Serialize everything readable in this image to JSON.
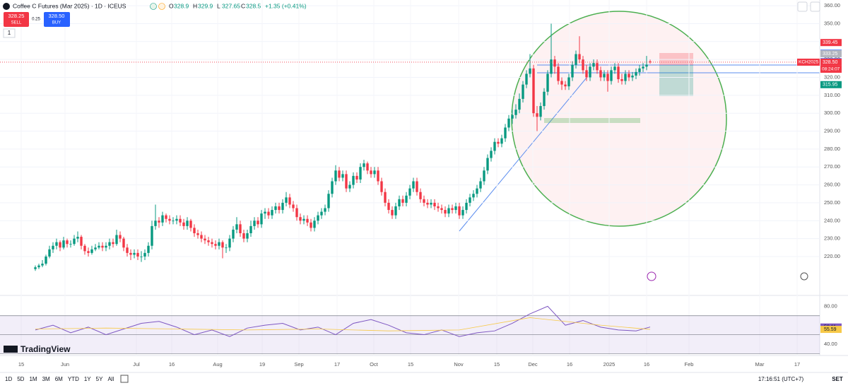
{
  "header": {
    "title": "Coffee C Futures (Mar 2025) · 1D · ICEUS",
    "o_label": "O",
    "h_label": "H",
    "l_label": "L",
    "c_label": "C",
    "change": "+1.35 (+0.41%)",
    "sell_price": "328.25",
    "sell_label": "SELL",
    "spread": "0.25",
    "buy_price": "328.50",
    "buy_label": "BUY",
    "quantity": "1",
    "logo": "TradingView"
  },
  "toolbar": {
    "ranges": [
      "1D",
      "5D",
      "1M",
      "3M",
      "6M",
      "YTD",
      "1Y",
      "5Y",
      "All"
    ],
    "clock": "17:16:51 (UTC+7)",
    "session": "SET"
  },
  "chart_data": [
    {
      "type": "candlestick",
      "symbol_tag": "KCH2025",
      "countdown": "08:24:07",
      "up_color": "#089981",
      "down_color": "#f23645",
      "xlim": [
        -10,
        222
      ],
      "ylim": [
        204.6,
        363.2
      ],
      "yticks": [
        {
          "value": 220,
          "label": "220.00"
        },
        {
          "value": 230,
          "label": "230.00"
        },
        {
          "value": 240,
          "label": "240.00"
        },
        {
          "value": 250,
          "label": "250.00"
        },
        {
          "value": 260,
          "label": "260.00"
        },
        {
          "value": 270,
          "label": "270.00"
        },
        {
          "value": 280,
          "label": "280.00"
        },
        {
          "value": 290,
          "label": "290.00"
        },
        {
          "value": 300,
          "label": "300.00"
        },
        {
          "value": 310,
          "label": "310.00"
        },
        {
          "value": 320,
          "label": "320.00"
        },
        {
          "value": 330,
          "label": "330.00"
        },
        {
          "value": 340,
          "label": "340.00"
        },
        {
          "value": 350,
          "label": "350.00"
        },
        {
          "value": 360,
          "label": "360.00"
        }
      ],
      "xticks": [
        {
          "value": -4,
          "label": "15"
        },
        {
          "value": 8.4,
          "label": "Jun"
        },
        {
          "value": 28.6,
          "label": "Jul"
        },
        {
          "value": 38.6,
          "label": "16"
        },
        {
          "value": 51.6,
          "label": "Aug"
        },
        {
          "value": 64.2,
          "label": "19"
        },
        {
          "value": 74.6,
          "label": "Sep"
        },
        {
          "value": 85.4,
          "label": "17"
        },
        {
          "value": 95.8,
          "label": "Oct"
        },
        {
          "value": 106.2,
          "label": "15"
        },
        {
          "value": 119.8,
          "label": "Nov"
        },
        {
          "value": 130.6,
          "label": "15"
        },
        {
          "value": 140.8,
          "label": "Dec"
        },
        {
          "value": 151.2,
          "label": "16"
        },
        {
          "value": 162.4,
          "label": "2025"
        },
        {
          "value": 173,
          "label": "16"
        },
        {
          "value": 185,
          "label": "Feb"
        },
        {
          "value": 205,
          "label": "Mar"
        },
        {
          "value": 215.6,
          "label": "17"
        }
      ],
      "price_tags": [
        {
          "value": 339.45,
          "label": "339.45",
          "color": "#f23645"
        },
        {
          "value": 333.5,
          "label": "333.50",
          "color": "#2962ff"
        },
        {
          "value": 333.25,
          "label": "333.25",
          "color": "#b2b5be"
        },
        {
          "value": 328.75,
          "label": "328.75",
          "color": "#2962ff"
        },
        {
          "value": 328.5,
          "label": "328.50",
          "color": "#f23645"
        },
        {
          "value": 315.95,
          "label": "315.95",
          "color": "#089981"
        }
      ],
      "series": {
        "open": [
          213,
          214,
          215,
          216,
          220,
          224,
          226,
          228,
          225,
          229,
          227,
          227,
          230,
          231,
          226,
          223,
          222,
          224,
          225,
          226,
          225,
          226,
          228,
          227,
          232,
          230,
          225,
          222,
          221,
          222,
          220,
          220,
          222,
          226,
          237,
          240,
          239,
          243,
          241,
          240,
          240,
          241,
          239,
          237,
          240,
          236,
          233,
          232,
          230,
          229,
          228,
          227,
          226,
          228,
          225,
          225,
          230,
          235,
          238,
          233,
          230,
          233,
          237,
          240,
          238,
          244,
          245,
          243,
          246,
          248,
          246,
          250,
          253,
          249,
          247,
          242,
          240,
          241,
          239,
          236,
          240,
          243,
          245,
          247,
          255,
          262,
          268,
          264,
          266,
          258,
          260,
          265,
          263,
          270,
          272,
          268,
          266,
          268,
          262,
          256,
          250,
          246,
          243,
          248,
          252,
          250,
          254,
          258,
          262,
          256,
          252,
          250,
          249,
          250,
          248,
          247,
          246,
          244,
          247,
          246,
          248,
          243,
          246,
          250,
          253,
          255,
          258,
          262,
          268,
          275,
          279,
          284,
          283,
          286,
          292,
          297,
          299,
          302,
          308,
          316,
          322,
          325,
          300,
          298,
          304,
          312,
          322,
          330,
          326,
          318,
          316,
          315,
          320,
          327,
          333,
          330,
          324,
          320,
          326,
          328,
          324,
          320,
          322,
          318,
          324,
          326,
          319,
          318,
          322,
          320,
          321,
          323,
          325,
          326,
          328.9
        ],
        "high": [
          215,
          216,
          218,
          221,
          226,
          228,
          230,
          229,
          231,
          230,
          229,
          232,
          234,
          232,
          227,
          225,
          226,
          227,
          228,
          228,
          228,
          230,
          230,
          235,
          234,
          231,
          227,
          224,
          224,
          224,
          223,
          224,
          228,
          240,
          249,
          242,
          245,
          244,
          243,
          242,
          243,
          243,
          241,
          242,
          241,
          238,
          235,
          234,
          232,
          231,
          230,
          229,
          230,
          229,
          227,
          232,
          237,
          242,
          240,
          235,
          235,
          240,
          242,
          242,
          246,
          247,
          247,
          248,
          250,
          250,
          252,
          256,
          255,
          251,
          249,
          244,
          243,
          243,
          241,
          242,
          245,
          247,
          249,
          257,
          264,
          271,
          270,
          268,
          268,
          262,
          267,
          267,
          272,
          274,
          273,
          270,
          270,
          270,
          264,
          258,
          252,
          248,
          250,
          254,
          254,
          256,
          260,
          264,
          264,
          258,
          254,
          252,
          252,
          252,
          250,
          249,
          248,
          249,
          249,
          250,
          250,
          248,
          252,
          255,
          257,
          260,
          264,
          270,
          277,
          281,
          286,
          286,
          288,
          294,
          299,
          302,
          305,
          311,
          318,
          324,
          333,
          327,
          304,
          306,
          314,
          324,
          350,
          332,
          328,
          320,
          318,
          322,
          329,
          335,
          343,
          332,
          327,
          328,
          330,
          330,
          326,
          324,
          324,
          326,
          328,
          328,
          322,
          324,
          324,
          323,
          325,
          327,
          328,
          332,
          329.9
        ],
        "low": [
          212,
          213,
          214,
          215,
          219,
          222,
          224,
          223,
          224,
          225,
          225,
          226,
          228,
          224,
          221,
          220,
          221,
          223,
          224,
          223,
          223,
          224,
          225,
          226,
          228,
          223,
          220,
          218,
          219,
          218,
          217,
          218,
          220,
          224,
          235,
          236,
          237,
          239,
          238,
          238,
          238,
          237,
          235,
          235,
          234,
          231,
          230,
          228,
          227,
          226,
          225,
          224,
          224,
          219,
          222,
          223,
          228,
          233,
          231,
          228,
          228,
          231,
          235,
          236,
          236,
          241,
          241,
          241,
          244,
          244,
          244,
          248,
          247,
          245,
          240,
          238,
          238,
          237,
          234,
          234,
          238,
          241,
          243,
          245,
          253,
          260,
          262,
          262,
          256,
          256,
          258,
          261,
          261,
          268,
          266,
          264,
          264,
          260,
          254,
          248,
          244,
          241,
          241,
          246,
          248,
          248,
          252,
          256,
          254,
          250,
          248,
          247,
          247,
          246,
          245,
          244,
          242,
          242,
          244,
          244,
          241,
          241,
          244,
          248,
          251,
          253,
          256,
          260,
          266,
          273,
          277,
          281,
          281,
          284,
          290,
          294,
          297,
          300,
          306,
          314,
          320,
          298,
          290,
          296,
          302,
          310,
          320,
          322,
          316,
          313,
          313,
          313,
          318,
          325,
          328,
          322,
          318,
          318,
          324,
          322,
          318,
          318,
          312,
          316,
          322,
          317,
          316,
          316,
          318,
          318,
          319,
          321,
          323,
          324,
          327.65
        ],
        "close": [
          214,
          215,
          216,
          220,
          224,
          226,
          228,
          225,
          229,
          227,
          227,
          230,
          231,
          226,
          223,
          222,
          224,
          225,
          226,
          225,
          226,
          228,
          227,
          232,
          230,
          225,
          222,
          221,
          222,
          220,
          220,
          222,
          226,
          237,
          240,
          239,
          243,
          241,
          240,
          240,
          241,
          239,
          237,
          240,
          236,
          233,
          232,
          230,
          229,
          228,
          227,
          226,
          228,
          225,
          225,
          230,
          235,
          238,
          233,
          230,
          233,
          237,
          240,
          238,
          244,
          245,
          243,
          246,
          248,
          246,
          250,
          253,
          249,
          247,
          242,
          240,
          241,
          239,
          236,
          240,
          243,
          245,
          247,
          255,
          262,
          268,
          264,
          266,
          258,
          260,
          265,
          263,
          270,
          272,
          268,
          266,
          268,
          262,
          256,
          250,
          246,
          243,
          248,
          252,
          250,
          254,
          258,
          262,
          256,
          252,
          250,
          249,
          250,
          248,
          247,
          246,
          244,
          247,
          246,
          248,
          243,
          246,
          250,
          253,
          255,
          258,
          262,
          268,
          275,
          279,
          284,
          283,
          286,
          292,
          297,
          299,
          302,
          308,
          316,
          322,
          325,
          300,
          298,
          304,
          312,
          322,
          330,
          326,
          318,
          316,
          315,
          320,
          327,
          333,
          330,
          324,
          320,
          326,
          328,
          324,
          320,
          322,
          318,
          324,
          326,
          319,
          318,
          322,
          320,
          321,
          323,
          325,
          326,
          327.15,
          328.5
        ]
      }
    },
    {
      "type": "line",
      "ylim": [
        28,
        90
      ],
      "xlim": [
        -10,
        222
      ],
      "yticks": [
        {
          "value": 80,
          "label": "80.00"
        },
        {
          "value": 40,
          "label": "40.00"
        }
      ],
      "band_lines": [
        70,
        50,
        30
      ],
      "series": [
        {
          "color": "#7e57c2",
          "x": [
            0,
            5,
            10,
            15,
            20,
            25,
            30,
            35,
            40,
            45,
            50,
            55,
            60,
            65,
            70,
            75,
            80,
            85,
            90,
            95,
            100,
            105,
            110,
            115,
            120,
            125,
            130,
            135,
            140,
            145,
            150,
            155,
            160,
            165,
            170,
            174
          ],
          "values": [
            55,
            60,
            52,
            58,
            50,
            56,
            62,
            64,
            58,
            50,
            55,
            48,
            57,
            60,
            62,
            55,
            58,
            50,
            62,
            66,
            60,
            52,
            50,
            55,
            48,
            52,
            54,
            62,
            72,
            80,
            60,
            65,
            58,
            55,
            54,
            58.11
          ]
        },
        {
          "color": "#f7c948",
          "x": [
            0,
            20,
            40,
            60,
            80,
            100,
            120,
            140,
            160,
            174
          ],
          "values": [
            56,
            57,
            56,
            55,
            56,
            54,
            55,
            68,
            60,
            55.59
          ]
        }
      ]
    }
  ]
}
